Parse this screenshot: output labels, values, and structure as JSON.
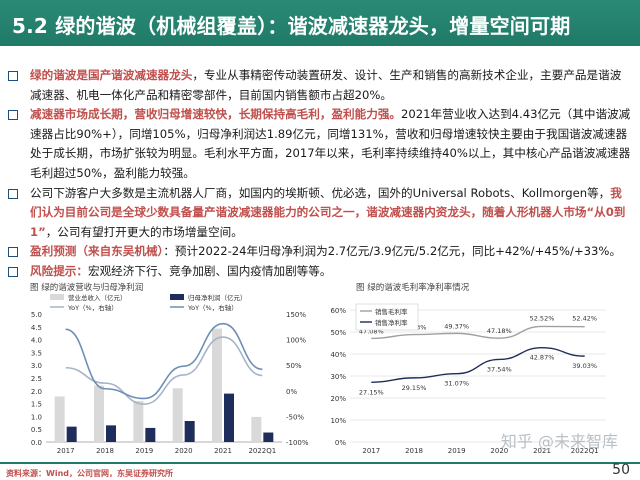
{
  "header": {
    "title": "5.2 绿的谐波（机械组覆盖）：谐波减速器龙头，增量空间可期",
    "logo_text": ""
  },
  "bullets": [
    {
      "segments": [
        {
          "text": "绿的谐波是国产谐波减速器龙头",
          "hl": true
        },
        {
          "text": "，专业从事精密传动装置研发、设计、生产和销售的高新技术企业，主要产品是谐波减速器、机电一体化产品和精密零部件，目前国内销售额市占超20%。",
          "hl": false
        }
      ]
    },
    {
      "segments": [
        {
          "text": "减速器市场成长期，营收归母增速较快，长期保持高毛利，盈利能力强。",
          "hl": true
        },
        {
          "text": "2021年营业收入达到4.43亿元（其中谐波减速器占比90%+），同增105%，归母净利润达1.89亿元，同增131%，营收和归母增速较快主要由于我国谐波减速器处于成长期，市场扩张较为明显。毛利水平方面，2017年以来，毛利率持续维持40%以上，其中核心产品谐波减速器毛利超过50%，盈利能力较强。",
          "hl": false
        }
      ]
    },
    {
      "segments": [
        {
          "text": "公司下游客户大多数是主流机器人厂商，如国内的埃斯顿、优必选，国外的Universal Robots、Kollmorgen等，",
          "hl": false
        },
        {
          "text": "我们认为目前公司是全球少数具备量产谐波减速器能力的公司之一，谐波减速器内资龙头，随着人形机器人市场“从0到1”",
          "hl": true
        },
        {
          "text": "，公司有望打开更大的市场增量空间。",
          "hl": false
        }
      ]
    },
    {
      "segments": [
        {
          "text": "盈利预测（来自东吴机械）",
          "hl": true
        },
        {
          "text": "：预计2022-24年归母净利润为2.7亿元/3.9亿元/5.2亿元，同比+42%/+45%/+33%。",
          "hl": false
        }
      ]
    },
    {
      "segments": [
        {
          "text": "风险提示：",
          "hl": true
        },
        {
          "text": "宏观经济下行、竞争加剧、国内疫情加剧等等。",
          "hl": false
        }
      ]
    }
  ],
  "chart_data": [
    {
      "type": "bar",
      "title": "图  绿的谐波营收与归母净利润",
      "categories": [
        "2017",
        "2018",
        "2019",
        "2020",
        "2021",
        "2022Q1"
      ],
      "series": [
        {
          "name": "营业总收入（亿元）",
          "values": [
            1.78,
            2.2,
            1.6,
            2.1,
            4.43,
            0.98
          ],
          "color": "#d9d9d9"
        },
        {
          "name": "归母净利润（亿元）",
          "values": [
            0.6,
            0.65,
            0.55,
            0.82,
            1.89,
            0.37
          ],
          "color": "#1f2d5a"
        },
        {
          "name": "YoY（%，右轴）",
          "values": [
            45,
            15,
            -26,
            31,
            105,
            30
          ],
          "color": "#a6b4c8",
          "axis": "right"
        },
        {
          "name": "YoY（%，右轴）",
          "values": [
            120,
            4,
            -15,
            48,
            131,
            42
          ],
          "color": "#6d8fb7",
          "axis": "right"
        }
      ],
      "ylim": [
        0,
        5.0
      ],
      "yticks": [
        "0.0",
        "0.5",
        "1.0",
        "1.5",
        "2.0",
        "2.5",
        "3.0",
        "3.5",
        "4.0",
        "4.5",
        "5.0"
      ],
      "y2lim": [
        -100,
        150
      ],
      "y2ticks": [
        "-100%",
        "-50%",
        "0%",
        "50%",
        "100%",
        "150%"
      ],
      "legend": "top",
      "grid": false
    },
    {
      "type": "line",
      "title": "图  绿的谐波毛利率净利率情况",
      "categories": [
        "2017",
        "2018",
        "2019",
        "2020",
        "2021",
        "2022Q1"
      ],
      "series": [
        {
          "name": "销售毛利率",
          "values": [
            47.08,
            48.83,
            49.37,
            47.18,
            52.52,
            52.42
          ],
          "labels": [
            "47.08%",
            "48.83%",
            "49.37%",
            "47.18%",
            "52.52%",
            "52.42%"
          ],
          "color": "#a0a0a0"
        },
        {
          "name": "销售净利率",
          "values": [
            27.15,
            29.15,
            31.07,
            37.54,
            42.87,
            39.03
          ],
          "labels": [
            "27.15%",
            "29.15%",
            "31.07%",
            "37.54%",
            "42.87%",
            "39.03%"
          ],
          "color": "#1f2d5a"
        }
      ],
      "ylim": [
        0,
        60
      ],
      "yticks": [
        "0%",
        "10%",
        "20%",
        "30%",
        "40%",
        "50%",
        "60%"
      ],
      "legend": "top-left",
      "grid": true
    }
  ],
  "footer": {
    "source": "资料来源：Wind，公司官网，东吴证券研究所",
    "page": "50",
    "watermark": "知乎 @未来智库"
  },
  "colors": {
    "header": "#1f7a66",
    "highlight": "#c0504d",
    "bullet_box": "#1f4e79"
  }
}
